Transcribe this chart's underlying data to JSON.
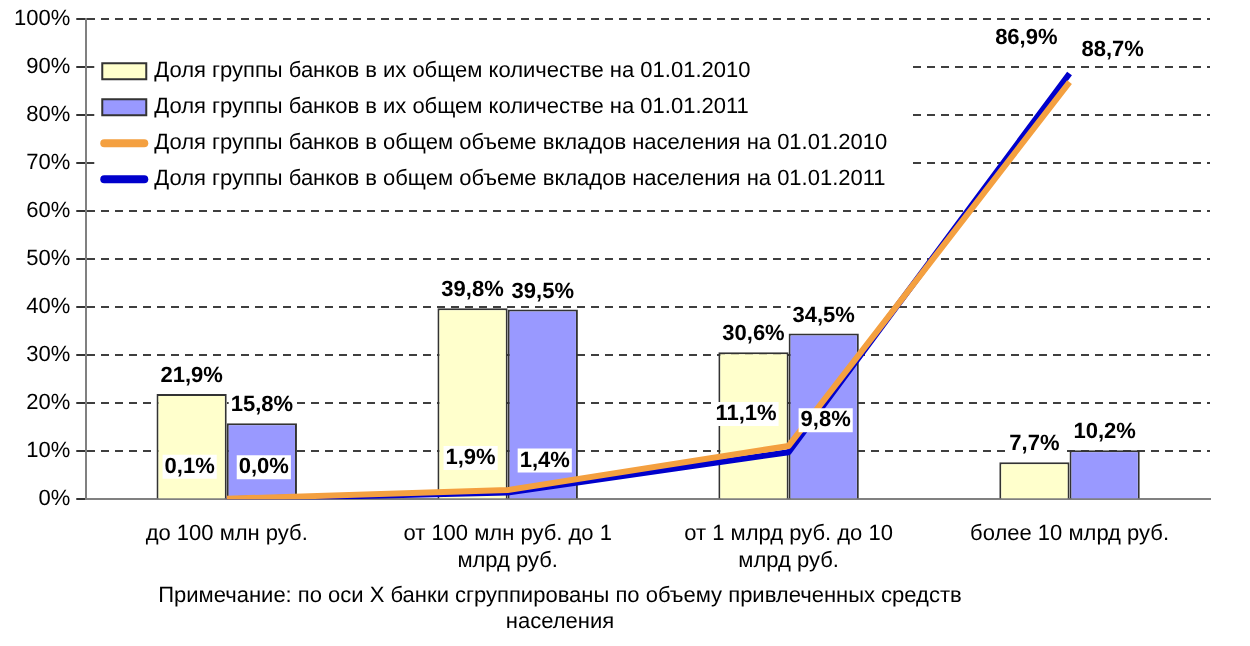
{
  "chart_data": {
    "type": "bar",
    "categories": [
      "до 100 млн руб.",
      "от 100 млн руб. до 1 млрд руб.",
      "от 1 млрд руб. до 10 млрд руб.",
      "более 10 млрд руб."
    ],
    "series": [
      {
        "name": "Доля группы банков в их общем количестве на 01.01.2010",
        "color": "#ffffcc",
        "values": [
          21.9,
          39.8,
          30.6,
          7.7
        ],
        "value_labels": [
          "21,9%",
          "39,8%",
          "30,6%",
          "7,7%"
        ]
      },
      {
        "name": "Доля группы банков в их общем количестве на 01.01.2011",
        "color": "#9999ff",
        "values": [
          15.8,
          39.5,
          34.5,
          10.2
        ],
        "value_labels": [
          "15,8%",
          "39,5%",
          "34,5%",
          "10,2%"
        ]
      },
      {
        "name": "Доля группы банков в общем объеме вкладов населения на 01.01.2010",
        "type": "line",
        "color": "#f4a040",
        "values": [
          0.1,
          1.9,
          11.1,
          86.9
        ],
        "value_labels": [
          "0,1%",
          "1,9%",
          "11,1%",
          "86,9%"
        ]
      },
      {
        "name": "Доля группы банков в общем объеме вкладов населения на 01.01.2011",
        "type": "line",
        "color": "#0000cc",
        "values": [
          0.0,
          1.4,
          9.8,
          88.7
        ],
        "value_labels": [
          "0,0%",
          "1,4%",
          "9,8%",
          "88,7%"
        ]
      }
    ],
    "ylim": [
      0,
      100
    ],
    "yticks": [
      {
        "value": 0,
        "label": "0%"
      },
      {
        "value": 10,
        "label": "10%"
      },
      {
        "value": 20,
        "label": "20%"
      },
      {
        "value": 30,
        "label": "30%"
      },
      {
        "value": 40,
        "label": "40%"
      },
      {
        "value": 50,
        "label": "50%"
      },
      {
        "value": 60,
        "label": "60%"
      },
      {
        "value": 70,
        "label": "70%"
      },
      {
        "value": 80,
        "label": "80%"
      },
      {
        "value": 90,
        "label": "90%"
      },
      {
        "value": 100,
        "label": "100%"
      }
    ],
    "grid": "y",
    "legend": "top left",
    "marker": "none",
    "line_style": "solid",
    "annotations": [
      "Примечание: по оси X банки сгруппированы по объему привлеченных средств населения"
    ]
  }
}
